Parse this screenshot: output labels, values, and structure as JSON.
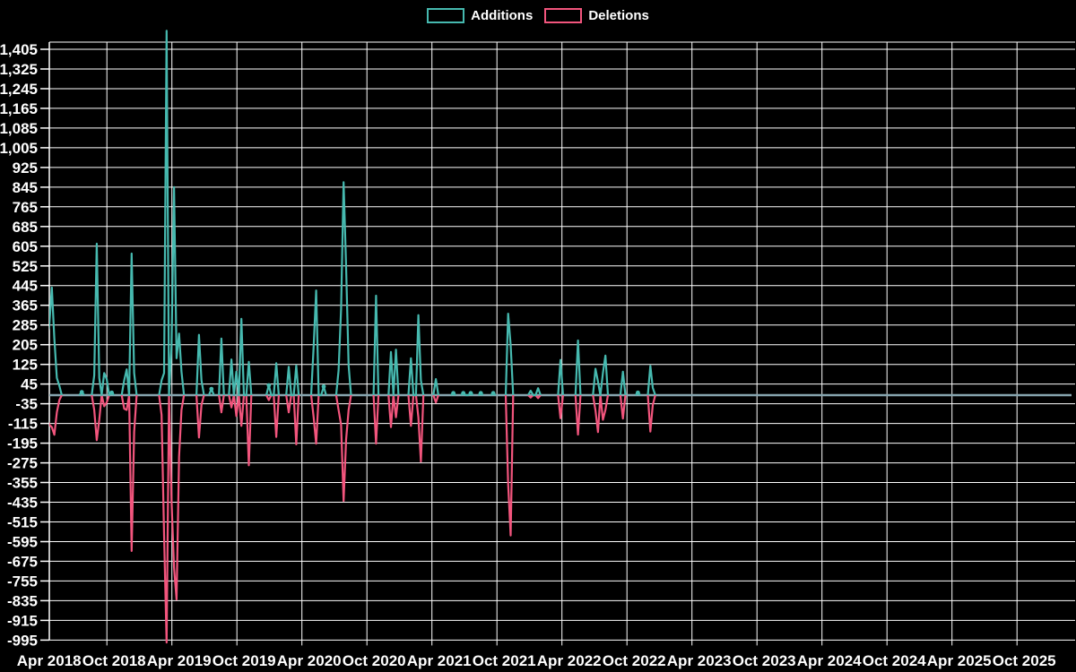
{
  "legend": {
    "additions_label": "Additions",
    "deletions_label": "Deletions"
  },
  "colors": {
    "background": "#000000",
    "grid": "#ffffff",
    "text": "#ffffff",
    "additions": "#46b9af",
    "deletions": "#f2557d",
    "baseline": "#87a5af"
  },
  "chart_data": {
    "type": "line",
    "title": "",
    "xlabel": "",
    "ylabel": "",
    "x_unit": "week",
    "n_weeks": 414,
    "ylim": [
      -995,
      1405
    ],
    "y_tick_step": 80,
    "grid": true,
    "legend_position": "top-center",
    "x_tick_labels": [
      "Apr 2018",
      "Oct 2018",
      "Apr 2019",
      "Oct 2019",
      "Apr 2020",
      "Oct 2020",
      "Apr 2021",
      "Oct 2021",
      "Apr 2022",
      "Oct 2022",
      "Apr 2023",
      "Oct 2023",
      "Apr 2024",
      "Oct 2024",
      "Apr 2025",
      "Oct 2025"
    ],
    "y_tick_labels": [
      "1,405",
      "1,325",
      "1,245",
      "1,165",
      "1,085",
      "1,005",
      "925",
      "845",
      "765",
      "685",
      "605",
      "525",
      "445",
      "365",
      "285",
      "205",
      "125",
      "45",
      "-35",
      "-115",
      "-195",
      "-275",
      "-355",
      "-435",
      "-515",
      "-595",
      "-675",
      "-755",
      "-835",
      "-915",
      "-995"
    ],
    "series": [
      {
        "name": "Additions",
        "color": "#46b9af",
        "default": 0,
        "points": [
          [
            2,
            230
          ],
          [
            3,
            285
          ],
          [
            4,
            437
          ],
          [
            5,
            230
          ],
          [
            6,
            70
          ],
          [
            7,
            38
          ],
          [
            16,
            12
          ],
          [
            21,
            80
          ],
          [
            22,
            615
          ],
          [
            23,
            70
          ],
          [
            25,
            90
          ],
          [
            26,
            65
          ],
          [
            28,
            10
          ],
          [
            33,
            60
          ],
          [
            34,
            105
          ],
          [
            36,
            575
          ],
          [
            37,
            90
          ],
          [
            48,
            60
          ],
          [
            49,
            90
          ],
          [
            50,
            1480
          ],
          [
            52,
            200
          ],
          [
            53,
            845
          ],
          [
            54,
            150
          ],
          [
            55,
            250
          ],
          [
            56,
            95
          ],
          [
            63,
            245
          ],
          [
            64,
            60
          ],
          [
            68,
            25
          ],
          [
            72,
            230
          ],
          [
            76,
            145
          ],
          [
            78,
            95
          ],
          [
            80,
            310
          ],
          [
            83,
            135
          ],
          [
            91,
            40
          ],
          [
            94,
            130
          ],
          [
            99,
            115
          ],
          [
            102,
            120
          ],
          [
            109,
            198
          ],
          [
            110,
            425
          ],
          [
            113,
            35
          ],
          [
            119,
            100
          ],
          [
            120,
            350
          ],
          [
            121,
            865
          ],
          [
            122,
            520
          ],
          [
            123,
            120
          ],
          [
            134,
            404
          ],
          [
            140,
            175
          ],
          [
            142,
            185
          ],
          [
            148,
            150
          ],
          [
            151,
            325
          ],
          [
            152,
            60
          ],
          [
            158,
            65
          ],
          [
            165,
            8
          ],
          [
            169,
            8
          ],
          [
            172,
            8
          ],
          [
            176,
            8
          ],
          [
            181,
            8
          ],
          [
            187,
            331
          ],
          [
            188,
            204
          ],
          [
            196,
            18
          ],
          [
            199,
            28
          ],
          [
            208,
            143
          ],
          [
            215,
            222
          ],
          [
            222,
            107
          ],
          [
            223,
            55
          ],
          [
            225,
            90
          ],
          [
            226,
            161
          ],
          [
            233,
            95
          ],
          [
            239,
            10
          ],
          [
            244,
            119
          ],
          [
            245,
            30
          ]
        ]
      },
      {
        "name": "Deletions",
        "color": "#f2557d",
        "default": 0,
        "points": [
          [
            2,
            -90
          ],
          [
            3,
            -120
          ],
          [
            4,
            -130
          ],
          [
            5,
            -161
          ],
          [
            6,
            -70
          ],
          [
            7,
            -20
          ],
          [
            21,
            -60
          ],
          [
            22,
            -183
          ],
          [
            23,
            -100
          ],
          [
            25,
            -45
          ],
          [
            26,
            -30
          ],
          [
            33,
            -55
          ],
          [
            34,
            -60
          ],
          [
            36,
            -633
          ],
          [
            37,
            -150
          ],
          [
            48,
            -80
          ],
          [
            49,
            -570
          ],
          [
            50,
            -1005
          ],
          [
            52,
            -430
          ],
          [
            53,
            -700
          ],
          [
            54,
            -830
          ],
          [
            55,
            -250
          ],
          [
            56,
            -60
          ],
          [
            63,
            -172
          ],
          [
            64,
            -40
          ],
          [
            72,
            -70
          ],
          [
            76,
            -50
          ],
          [
            78,
            -85
          ],
          [
            80,
            -125
          ],
          [
            83,
            -285
          ],
          [
            91,
            -20
          ],
          [
            94,
            -170
          ],
          [
            99,
            -70
          ],
          [
            102,
            -200
          ],
          [
            109,
            -90
          ],
          [
            110,
            -197
          ],
          [
            119,
            -60
          ],
          [
            120,
            -120
          ],
          [
            121,
            -430
          ],
          [
            122,
            -180
          ],
          [
            123,
            -60
          ],
          [
            134,
            -197
          ],
          [
            140,
            -130
          ],
          [
            142,
            -90
          ],
          [
            148,
            -125
          ],
          [
            151,
            -90
          ],
          [
            152,
            -270
          ],
          [
            158,
            -30
          ],
          [
            187,
            -360
          ],
          [
            188,
            -570
          ],
          [
            196,
            -10
          ],
          [
            199,
            -12
          ],
          [
            208,
            -94
          ],
          [
            215,
            -160
          ],
          [
            222,
            -62
          ],
          [
            223,
            -150
          ],
          [
            225,
            -100
          ],
          [
            226,
            -60
          ],
          [
            233,
            -95
          ],
          [
            244,
            -148
          ],
          [
            245,
            -40
          ]
        ]
      }
    ],
    "marker_weeks": [
      16,
      28,
      68,
      91,
      113,
      165,
      169,
      172,
      176,
      181,
      239
    ]
  }
}
